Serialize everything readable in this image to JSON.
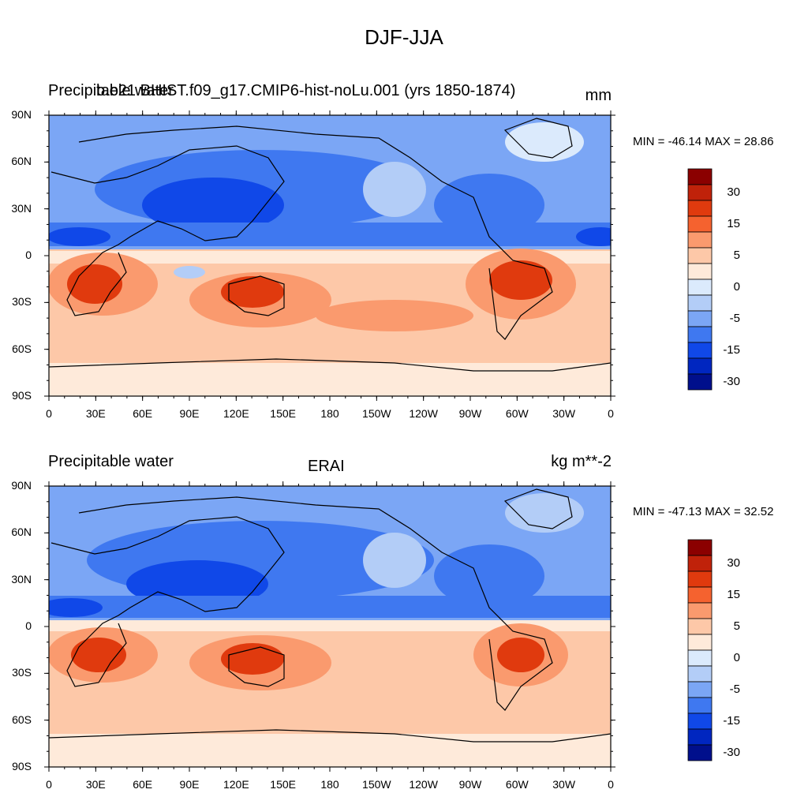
{
  "figure": {
    "title": "DJF-JJA"
  },
  "panels": [
    {
      "left_title": "Precipitable water",
      "center_title": "b.e21.BHIST.f09_g17.CMIP6-hist-noLu.001 (yrs 1850-1874)",
      "units": "mm",
      "stats": "MIN = -46.14 MAX =  28.86",
      "colorbar_labels": [
        "30",
        "15",
        "5",
        "0",
        "-5",
        "-15",
        "-30"
      ]
    },
    {
      "left_title": "Precipitable water",
      "center_title": "ERAI",
      "units": "kg m**-2",
      "stats": "MIN = -47.13 MAX =  32.52",
      "colorbar_labels": [
        "30",
        "15",
        "5",
        "0",
        "-5",
        "-15",
        "-30"
      ]
    }
  ],
  "axes": {
    "lat_labels": [
      "90N",
      "60N",
      "30N",
      "0",
      "30S",
      "60S",
      "90S"
    ],
    "lon_labels": [
      "0",
      "30E",
      "60E",
      "90E",
      "120E",
      "150E",
      "180",
      "150W",
      "120W",
      "90W",
      "60W",
      "30W",
      "0"
    ]
  },
  "colorbar": {
    "colors": [
      "#8b0000",
      "#c0220a",
      "#e03a0e",
      "#f5622f",
      "#fa9a6e",
      "#fdc8a8",
      "#feeada",
      "#dbeafc",
      "#b3cdf7",
      "#7ba6f5",
      "#3f78f0",
      "#1048e8",
      "#0026c0",
      "#000f8c"
    ]
  }
}
